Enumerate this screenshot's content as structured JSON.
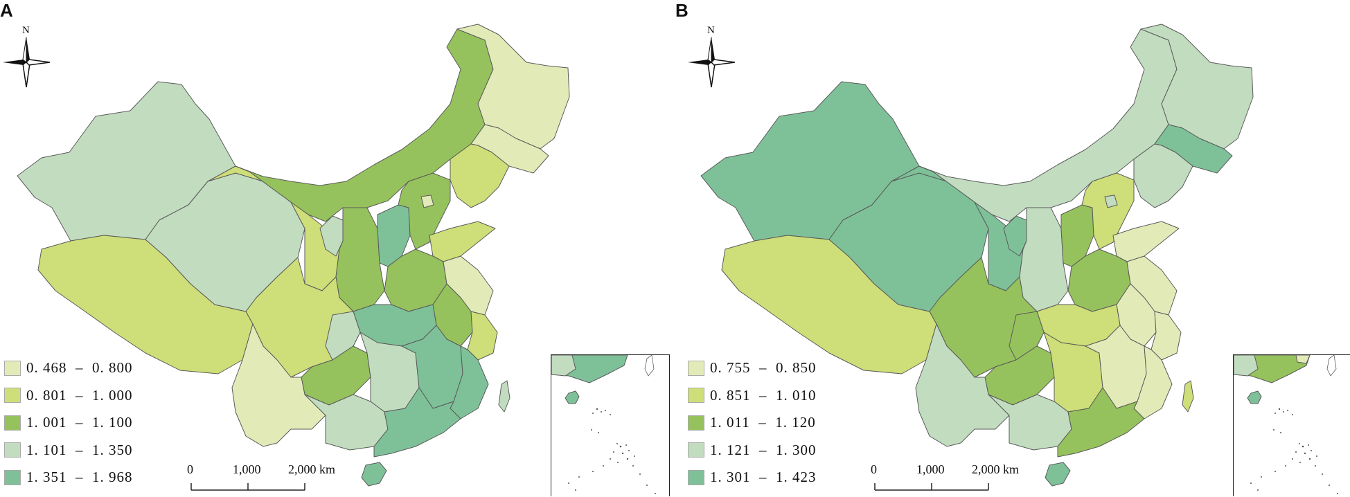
{
  "panels": [
    {
      "label": "A",
      "legend": [
        {
          "range": "0. 468  –  0. 800",
          "color": "#e2ebb8"
        },
        {
          "range": "0. 801  –  1. 000",
          "color": "#cede78"
        },
        {
          "range": "1. 001  –  1. 100",
          "color": "#95c25c"
        },
        {
          "range": "1. 101  –  1. 350",
          "color": "#c2dcc0"
        },
        {
          "range": "1. 351  –  1. 968",
          "color": "#7ec199"
        }
      ]
    },
    {
      "label": "B",
      "legend": [
        {
          "range": "0. 755  –  0. 850",
          "color": "#e2ebb8"
        },
        {
          "range": "0. 851  –  1. 010",
          "color": "#cede78"
        },
        {
          "range": "1. 011  –  1. 120",
          "color": "#95c25c"
        },
        {
          "range": "1. 121  –  1. 300",
          "color": "#c2dcc0"
        },
        {
          "range": "1. 301  –  1. 423",
          "color": "#7ec199"
        }
      ]
    }
  ],
  "north_label": "N",
  "scale": {
    "labels": [
      "0",
      "1,000",
      "2,000 km"
    ]
  },
  "colors": {
    "border": "#5a5a5a",
    "class1": "#e2ebb8",
    "class2": "#cede78",
    "class3": "#95c25c",
    "class4": "#c2dcc0",
    "class5": "#7ec199"
  }
}
